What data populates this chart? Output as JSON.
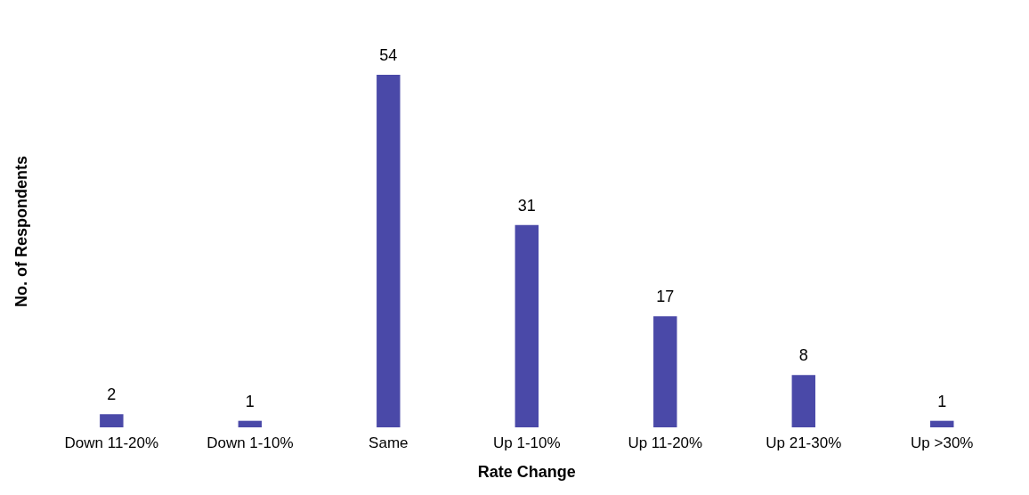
{
  "chart_data": {
    "type": "bar",
    "xlabel": "Rate Change",
    "ylabel": "No. of Respondents",
    "categories": [
      "Down 11-20%",
      "Down 1-10%",
      "Same",
      "Up 1-10%",
      "Up 11-20%",
      "Up 21-30%",
      "Up >30%"
    ],
    "values": [
      2,
      1,
      54,
      31,
      17,
      8,
      1
    ],
    "color": "#4a49a8",
    "data_labels": true,
    "grid": false,
    "legend": false
  }
}
